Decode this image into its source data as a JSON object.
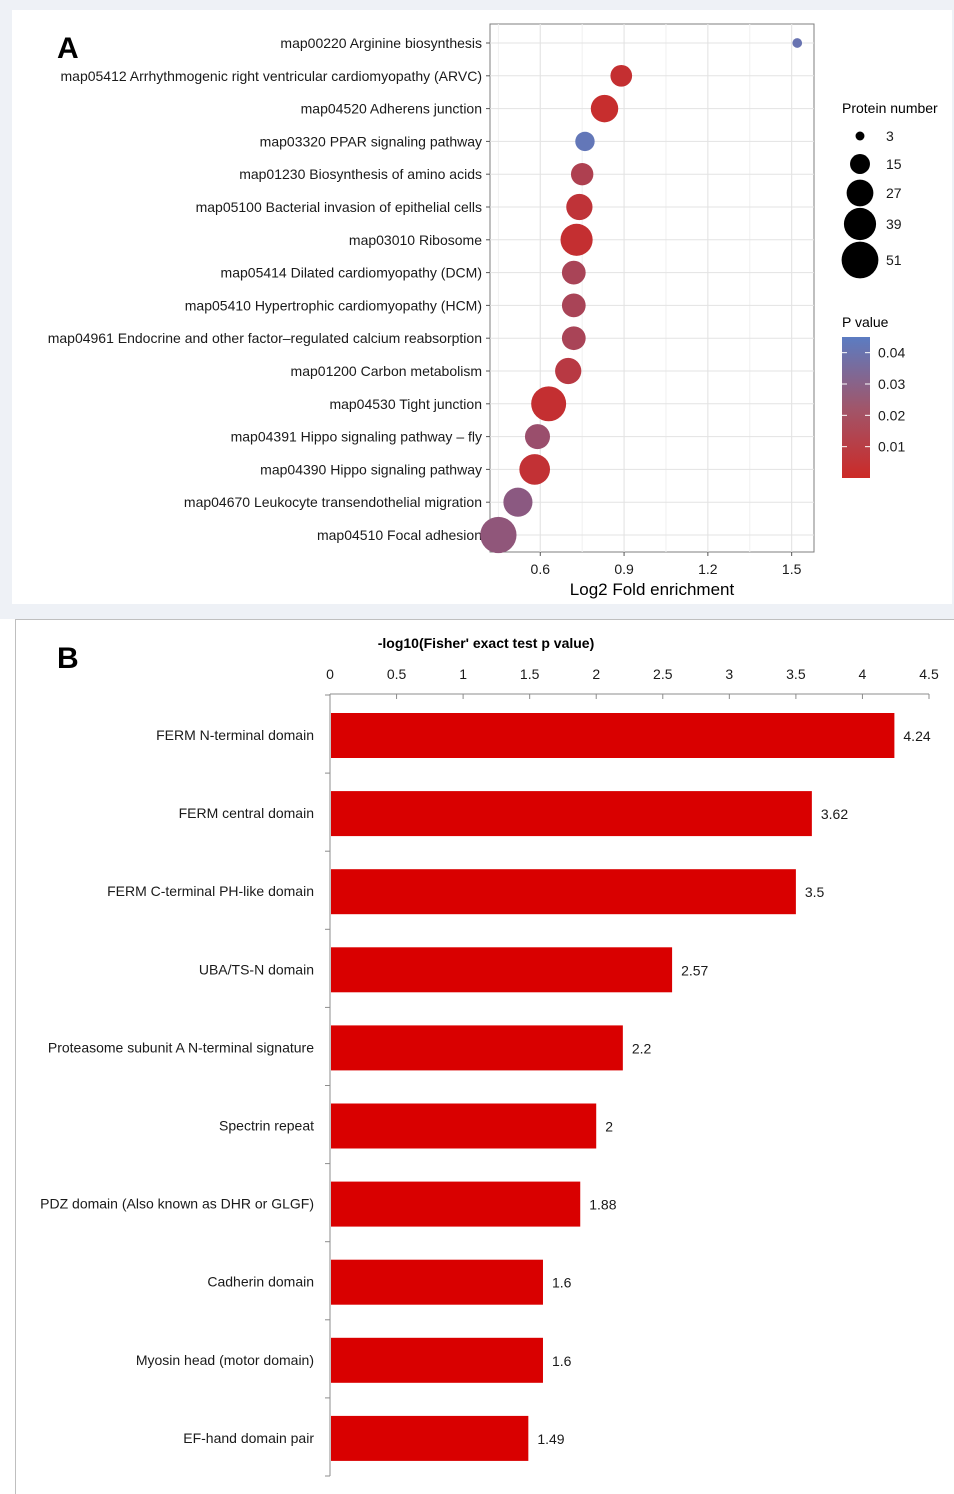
{
  "panel_a": {
    "label": "A",
    "chart_data": {
      "type": "scatter",
      "title": "",
      "xlabel": "Log2 Fold enrichment",
      "ylabel": "",
      "xlim": [
        0.42,
        1.58
      ],
      "xticks": [
        0.6,
        0.9,
        1.2,
        1.5
      ],
      "xtick_labels": [
        "0.6",
        "0.9",
        "1.2",
        "1.5"
      ],
      "grid": true,
      "points": [
        {
          "term": "map00220 Arginine biosynthesis",
          "x": 1.52,
          "size": 3,
          "p": 0.04
        },
        {
          "term": "map05412 Arrhythmogenic right ventricular cardiomyopathy (ARVC)",
          "x": 0.89,
          "size": 15,
          "p": 0.003
        },
        {
          "term": "map04520 Adherens junction",
          "x": 0.83,
          "size": 24,
          "p": 0.002
        },
        {
          "term": "map03320 PPAR signaling pathway",
          "x": 0.76,
          "size": 12,
          "p": 0.042
        },
        {
          "term": "map01230 Biosynthesis of amino acids",
          "x": 0.75,
          "size": 16,
          "p": 0.012
        },
        {
          "term": "map05100 Bacterial invasion of epithelial cells",
          "x": 0.74,
          "size": 22,
          "p": 0.005
        },
        {
          "term": "map03010 Ribosome",
          "x": 0.73,
          "size": 33,
          "p": 0.003
        },
        {
          "term": "map05414 Dilated cardiomyopathy (DCM)",
          "x": 0.72,
          "size": 18,
          "p": 0.014
        },
        {
          "term": "map05410 Hypertrophic cardiomyopathy (HCM)",
          "x": 0.72,
          "size": 18,
          "p": 0.014
        },
        {
          "term": "map04961 Endocrine and other factor–regulated calcium reabsorption",
          "x": 0.72,
          "size": 18,
          "p": 0.014
        },
        {
          "term": "map01200 Carbon metabolism",
          "x": 0.7,
          "size": 22,
          "p": 0.008
        },
        {
          "term": "map04530 Tight junction",
          "x": 0.63,
          "size": 39,
          "p": 0.003
        },
        {
          "term": "map04391 Hippo signaling pathway – fly",
          "x": 0.59,
          "size": 20,
          "p": 0.02
        },
        {
          "term": "map04390 Hippo signaling pathway",
          "x": 0.58,
          "size": 30,
          "p": 0.004
        },
        {
          "term": "map04670 Leukocyte transendothelial migration",
          "x": 0.52,
          "size": 27,
          "p": 0.026
        },
        {
          "term": "map04510 Focal adhesion",
          "x": 0.45,
          "size": 42,
          "p": 0.024
        }
      ],
      "size_legend": {
        "title": "Protein number",
        "values": [
          3,
          15,
          27,
          39,
          51
        ],
        "labels": [
          "3",
          "15",
          "27",
          "39",
          "51"
        ]
      },
      "color_legend": {
        "title": "P value",
        "ticks": [
          0.04,
          0.03,
          0.02,
          0.01
        ],
        "tick_labels": [
          "0.04",
          "0.03",
          "0.02",
          "0.01"
        ],
        "range": [
          0,
          0.045
        ],
        "low_color": "#cc2a27",
        "high_color": "#5b7cc2"
      }
    }
  },
  "panel_b": {
    "label": "B",
    "chart_data": {
      "type": "bar",
      "orientation": "horizontal",
      "title": "-log10(Fisher' exact test p value)",
      "xlabel": "",
      "ylabel": "",
      "xlim": [
        0,
        4.5
      ],
      "xticks": [
        0,
        0.5,
        1,
        1.5,
        2,
        2.5,
        3,
        3.5,
        4,
        4.5
      ],
      "xtick_labels": [
        "0",
        "0.5",
        "1",
        "1.5",
        "2",
        "2.5",
        "3",
        "3.5",
        "4",
        "4.5"
      ],
      "categories": [
        "FERM N-terminal domain",
        "FERM central domain",
        "FERM C-terminal PH-like domain",
        "UBA/TS-N domain",
        "Proteasome subunit A N-terminal signature",
        "Spectrin repeat",
        "PDZ domain (Also known as DHR or GLGF)",
        "Cadherin domain",
        "Myosin head (motor domain)",
        "EF-hand domain pair"
      ],
      "values": [
        4.24,
        3.62,
        3.5,
        2.57,
        2.2,
        2,
        1.88,
        1.6,
        1.6,
        1.49
      ],
      "value_labels": [
        "4.24",
        "3.62",
        "3.5",
        "2.57",
        "2.2",
        "2",
        "1.88",
        "1.6",
        "1.6",
        "1.49"
      ],
      "bar_color": "#d90000"
    }
  }
}
